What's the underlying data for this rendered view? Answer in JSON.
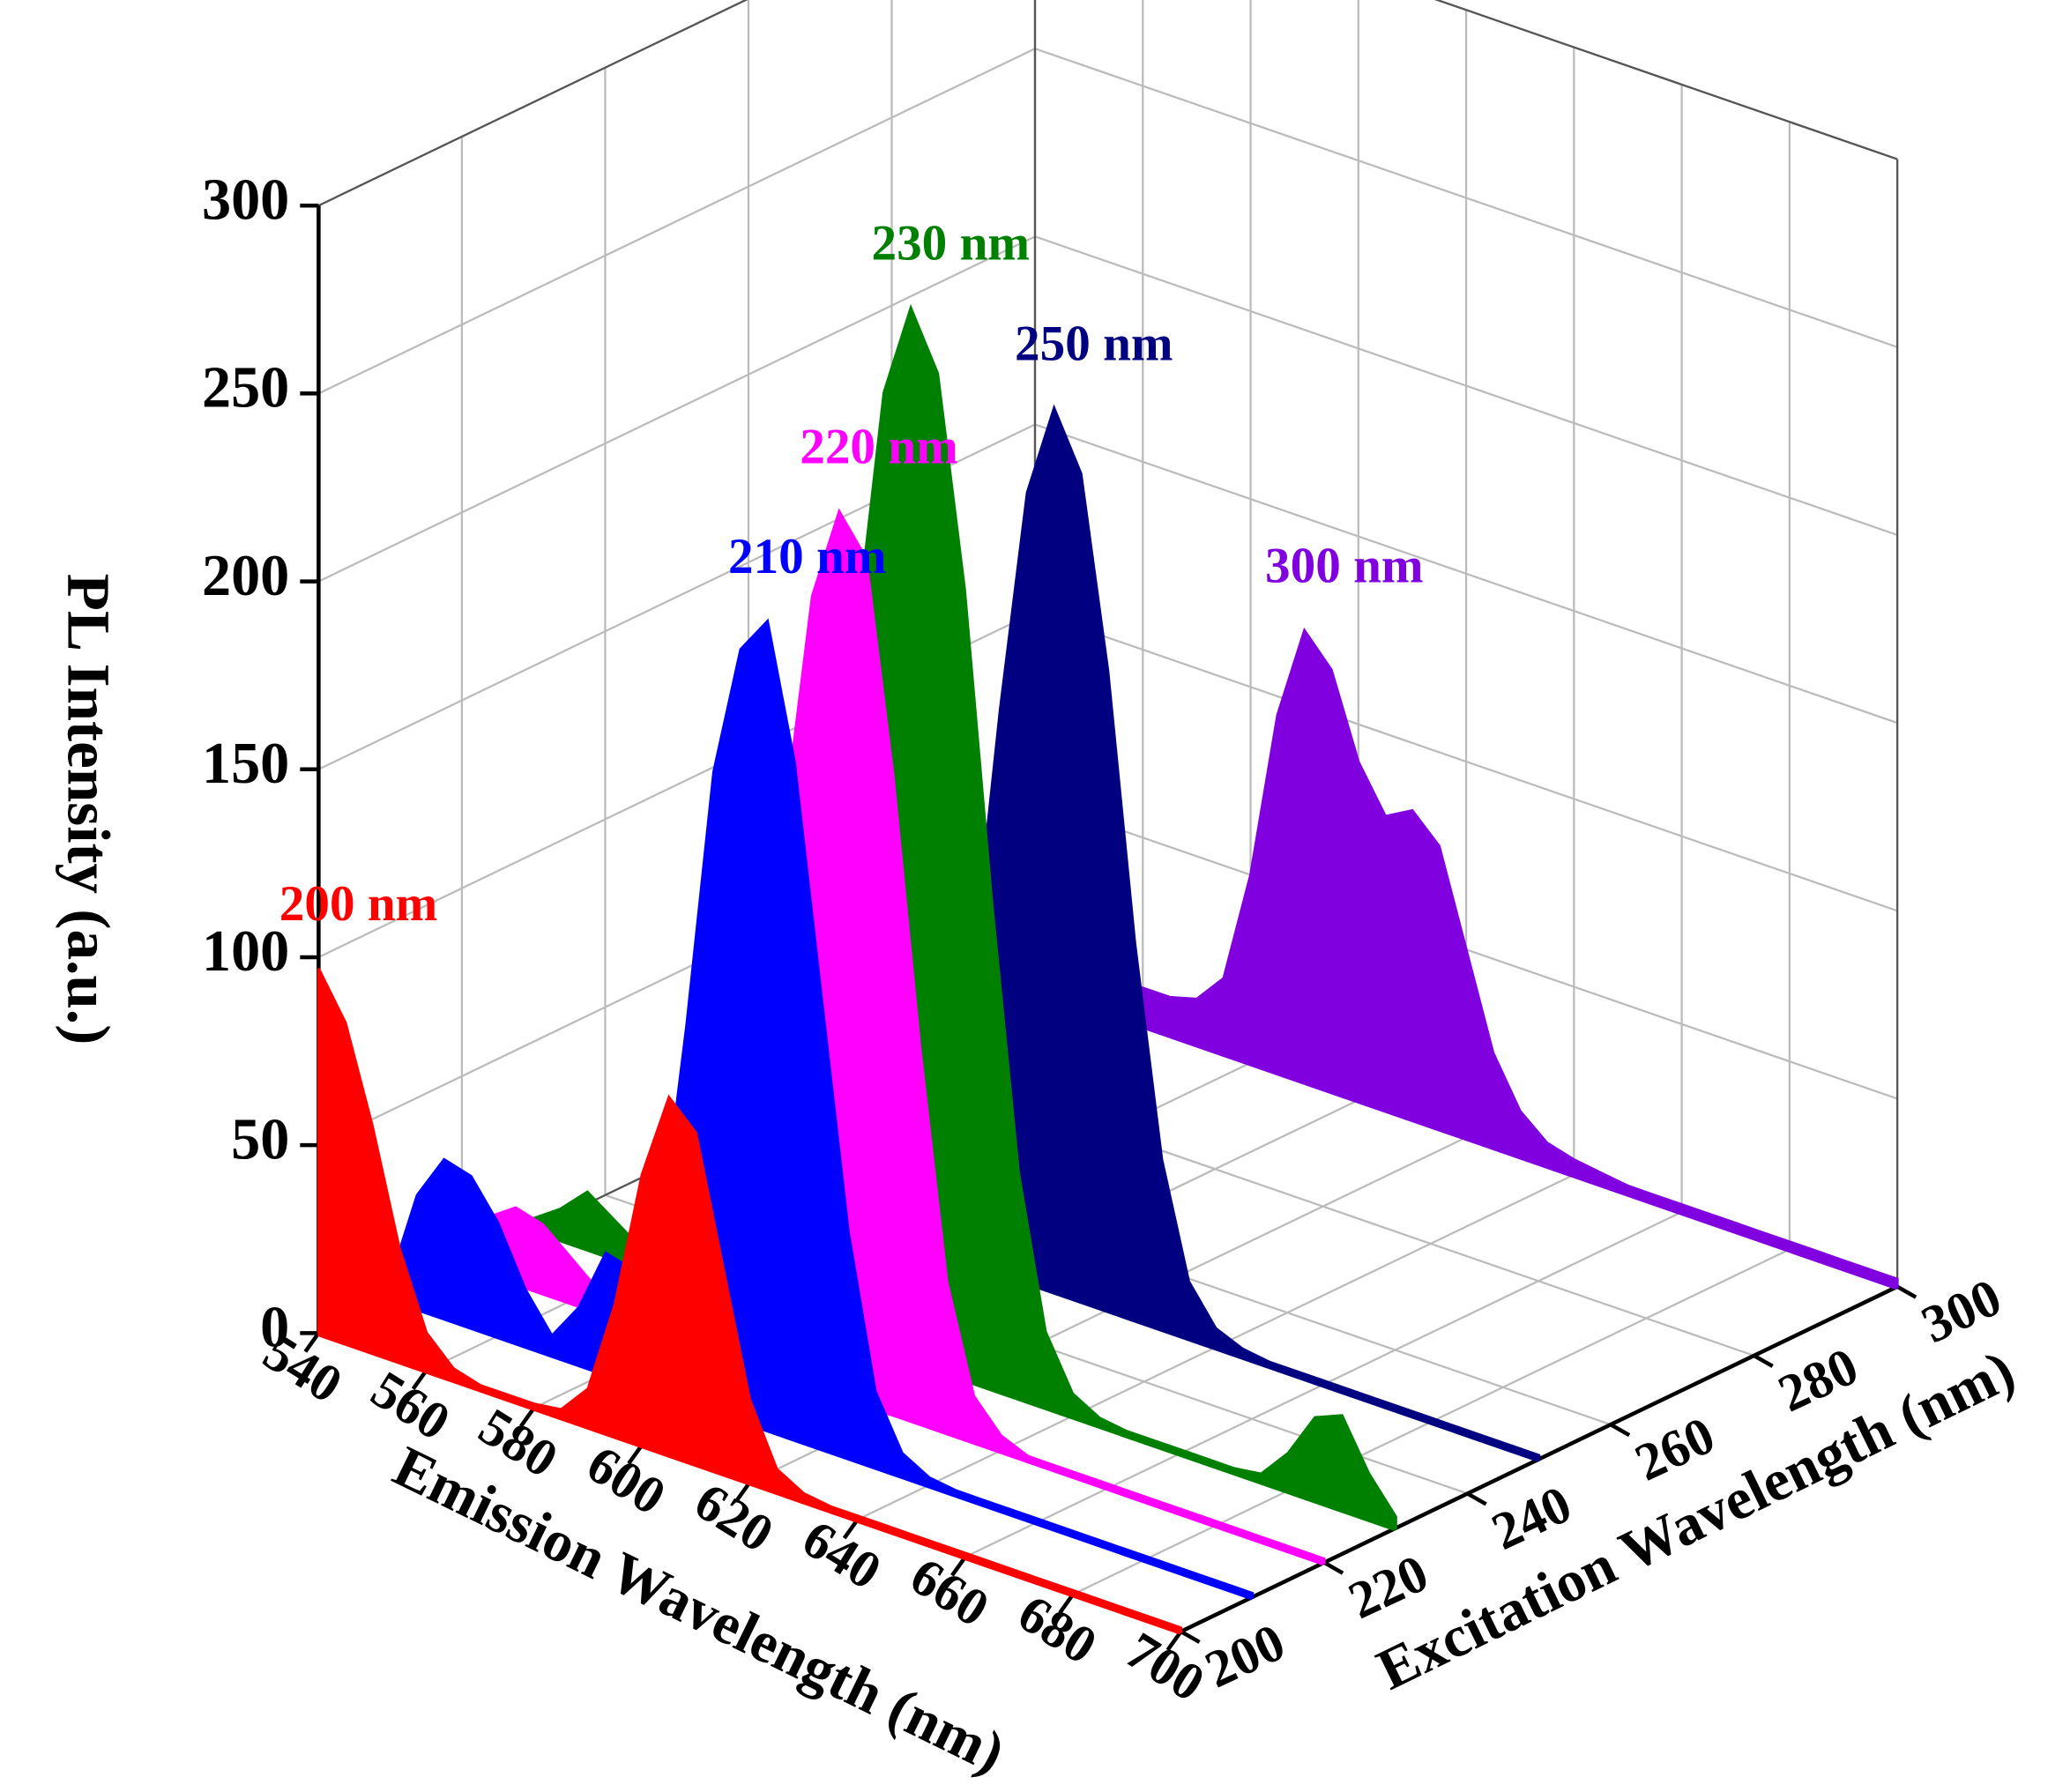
{
  "chart_data": {
    "type": "waterfall",
    "xlabel": "Emission Wavelength (nm)",
    "ylabel": "Excitation Wavelength (nm)",
    "zlabel": "PL Intensity (a.u.)",
    "x": [
      540,
      545,
      550,
      555,
      560,
      565,
      570,
      575,
      580,
      585,
      590,
      595,
      600,
      605,
      610,
      615,
      620,
      625,
      630,
      635,
      640,
      645,
      650,
      655,
      660,
      665,
      670,
      675,
      680,
      685,
      690,
      695,
      700
    ],
    "xlim": [
      540,
      700
    ],
    "xticks": [
      540,
      560,
      580,
      600,
      620,
      640,
      660,
      680,
      700
    ],
    "ylim": [
      200,
      300
    ],
    "yticks": [
      200,
      220,
      240,
      260,
      280,
      300
    ],
    "zlim": [
      0,
      300
    ],
    "zticks": [
      0,
      50,
      100,
      150,
      200,
      250,
      300
    ],
    "grid": true,
    "series": [
      {
        "name": "200 nm",
        "color": "#ff0000",
        "excitation": 200,
        "values": [
          97,
          85,
          60,
          30,
          10,
          3,
          1,
          1,
          1,
          2,
          10,
          35,
          72,
          95,
          88,
          55,
          22,
          6,
          2,
          1,
          1,
          1,
          1,
          1,
          1,
          1,
          1,
          1,
          1,
          1,
          1,
          1,
          1
        ]
      },
      {
        "name": "210 nm",
        "color": "#0000ff",
        "excitation": 210,
        "values": [
          5,
          30,
          42,
          40,
          30,
          15,
          5,
          15,
          32,
          30,
          40,
          100,
          170,
          205,
          215,
          180,
          120,
          60,
          20,
          6,
          2,
          1,
          1,
          1,
          1,
          1,
          1,
          1,
          1,
          1,
          1,
          1,
          1
        ]
      },
      {
        "name": "220 nm",
        "color": "#ff00ff",
        "excitation": 220,
        "values": [
          5,
          15,
          20,
          18,
          12,
          6,
          3,
          3,
          5,
          15,
          30,
          80,
          150,
          210,
          235,
          225,
          170,
          100,
          40,
          12,
          4,
          1,
          1,
          1,
          1,
          1,
          1,
          1,
          1,
          1,
          1,
          1,
          1
        ]
      },
      {
        "name": "230 nm",
        "color": "#008000",
        "excitation": 230,
        "values": [
          3,
          8,
          15,
          10,
          5,
          3,
          3,
          3,
          5,
          15,
          40,
          100,
          190,
          255,
          280,
          265,
          210,
          130,
          60,
          20,
          6,
          2,
          1,
          1,
          1,
          1,
          1,
          2,
          10,
          22,
          25,
          12,
          3
        ]
      },
      {
        "name": "250 nm",
        "color": "#000080",
        "excitation": 250,
        "values": [
          1,
          1,
          1,
          1,
          1,
          1,
          1,
          1,
          2,
          8,
          30,
          80,
          150,
          210,
          235,
          220,
          170,
          100,
          45,
          15,
          5,
          2,
          1,
          1,
          1,
          1,
          1,
          1,
          1,
          1,
          1,
          1,
          1
        ]
      },
      {
        "name": "300 nm",
        "color": "#8000e0",
        "excitation": 300,
        "values": [
          8,
          8,
          9,
          9,
          10,
          10,
          12,
          20,
          50,
          95,
          120,
          112,
          90,
          78,
          82,
          75,
          50,
          25,
          12,
          6,
          4,
          3,
          2,
          2,
          2,
          2,
          2,
          2,
          2,
          2,
          2,
          2,
          2
        ]
      }
    ]
  }
}
